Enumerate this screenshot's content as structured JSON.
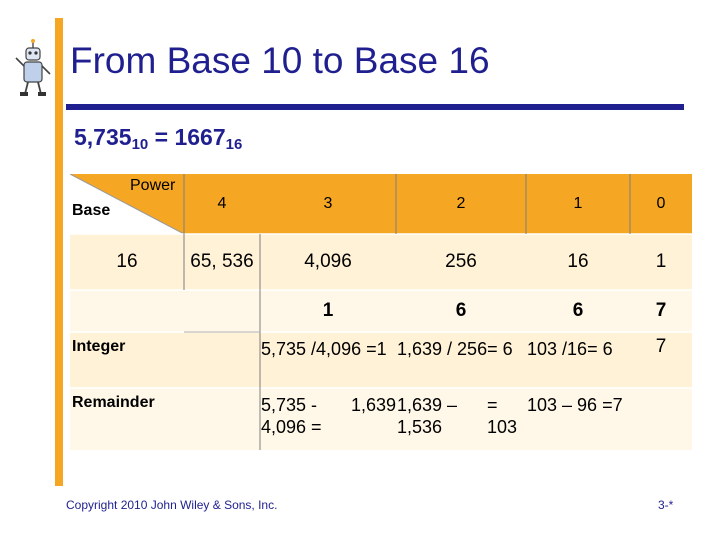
{
  "title": "From Base 10 to Base 16",
  "subtitle": {
    "left_num": "5,735",
    "left_sub": "10",
    "eq": " = ",
    "right_num": "1667",
    "right_sub": "16"
  },
  "header": {
    "power_label": "Power",
    "base_label": "Base",
    "powers": [
      "4",
      "3",
      "2",
      "1",
      "0"
    ]
  },
  "base_row": {
    "base": "16",
    "values": [
      "65, 536",
      "4,096",
      "256",
      "16",
      "1"
    ]
  },
  "digit_row": {
    "digits": [
      "1",
      "6",
      "6",
      "7"
    ]
  },
  "integer_row": {
    "label": "Integer",
    "col3": [
      "5,735 /4,096 =",
      "1"
    ],
    "col2": [
      "1,639 / 256",
      "= 6"
    ],
    "col1": [
      "103 /16",
      "= 6"
    ],
    "col0": "7"
  },
  "remainder_row": {
    "label": "Remainder",
    "col3": [
      "5,735 - 4,096 =",
      "1,639"
    ],
    "col2": [
      "1,639 –1,536",
      "= 103"
    ],
    "col1": [
      "103 – 96 =",
      "7"
    ]
  },
  "footer": "Copyright 2010 John Wiley & Sons, Inc.",
  "page_number": "3-*",
  "colors": {
    "accent": "#F5A623",
    "title": "#1F1F8F"
  }
}
